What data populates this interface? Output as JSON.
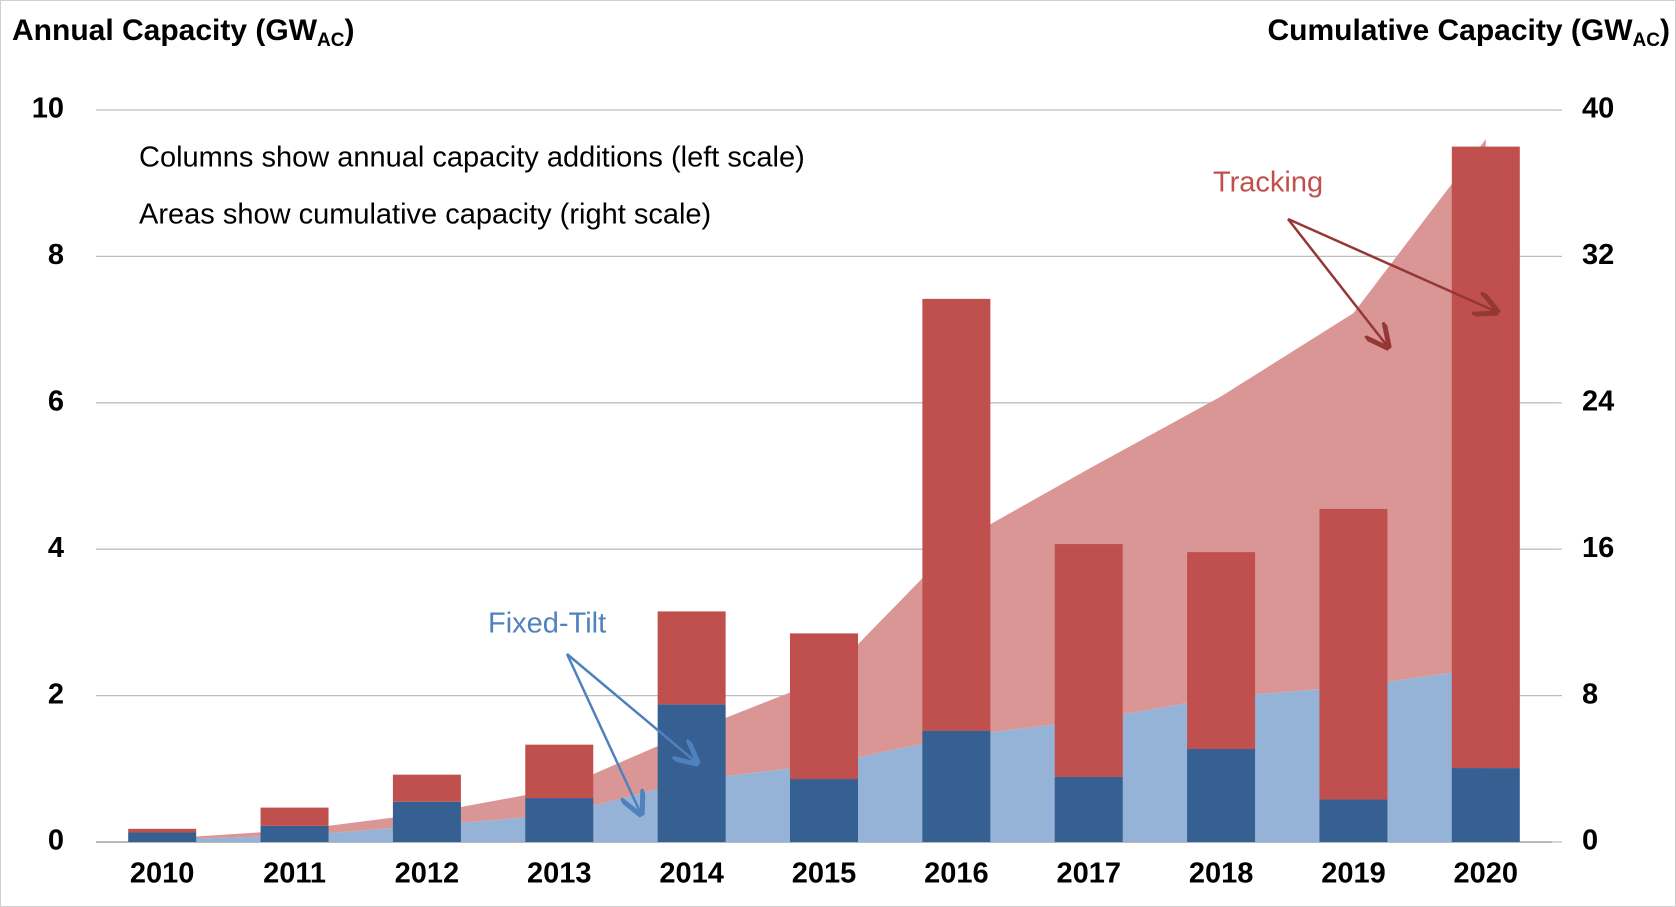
{
  "chart_data": {
    "type": "bar",
    "y_label": [
      "Annual Capacity (GW",
      "AC",
      ")"
    ],
    "y2_label": [
      "Cumulative Capacity (GW",
      "AC",
      ")"
    ],
    "annotations": [
      "Columns show annual capacity additions (left scale)",
      "Areas show cumulative capacity (right scale)"
    ],
    "categories": [
      "2010",
      "2011",
      "2012",
      "2013",
      "2014",
      "2015",
      "2016",
      "2017",
      "2018",
      "2019",
      "2020"
    ],
    "series": [
      {
        "name": "Fixed-Tilt",
        "color": "#366092",
        "values": [
          0.13,
          0.22,
          0.55,
          0.6,
          1.88,
          0.86,
          1.52,
          0.89,
          1.27,
          0.58,
          1.01
        ]
      },
      {
        "name": "Tracking",
        "color": "#c0504d",
        "values": [
          0.05,
          0.25,
          0.37,
          0.73,
          1.27,
          1.99,
          5.9,
          3.18,
          2.69,
          3.97,
          8.49
        ]
      },
      {
        "type": "area",
        "axis": "y2",
        "color": "#95b3d7",
        "values": [
          0.13,
          0.35,
          0.9,
          1.5,
          3.38,
          4.24,
          5.76,
          6.65,
          7.92,
          8.5,
          9.51
        ]
      },
      {
        "type": "area",
        "axis": "y2",
        "color": "#da9694",
        "values": [
          0.05,
          0.3,
          0.67,
          1.4,
          2.67,
          4.66,
          10.56,
          13.74,
          16.43,
          20.4,
          28.89
        ]
      }
    ],
    "stacked": true,
    "ylim": [
      0,
      10
    ],
    "yticks": [
      0,
      2,
      4,
      6,
      8,
      10
    ],
    "y2lim": [
      0,
      40
    ],
    "y2ticks": [
      0,
      8,
      16,
      24,
      32,
      40
    ],
    "grid": true
  }
}
